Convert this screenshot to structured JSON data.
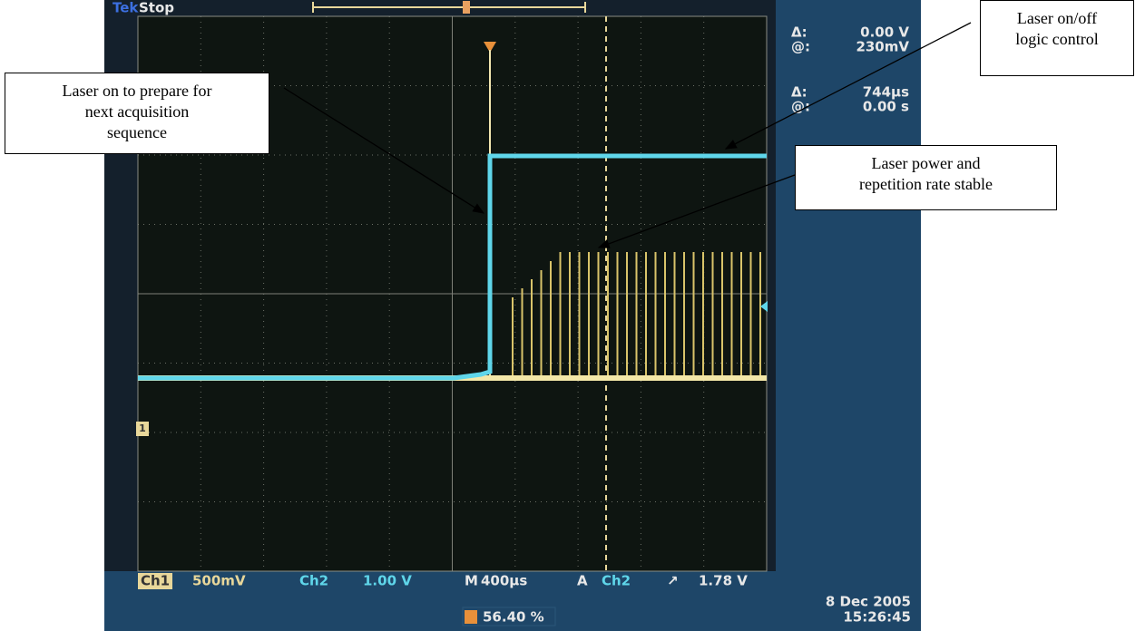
{
  "scope": {
    "brand": "Tek",
    "status": "Stop",
    "cursors": [
      {
        "delta_label": "Δ:",
        "delta": "0.00 V",
        "at_label": "@:",
        "at": "230mV"
      },
      {
        "delta_label": "Δ:",
        "delta": "744µs",
        "at_label": "@:",
        "at": "0.00 s"
      }
    ],
    "ch1_marker": "1",
    "status_bar": {
      "ch1": "Ch1",
      "ch1_scale": "500mV",
      "ch2": "Ch2",
      "ch2_scale": "1.00 V",
      "timebase_label": "M",
      "timebase": "400µs",
      "trigger_label": "A",
      "trigger_source": "Ch2",
      "trigger_level": "1.78 V"
    },
    "trigger_position": "56.40 %",
    "date": "8 Dec 2005",
    "time": "15:26:45"
  },
  "annotations": [
    {
      "lines": [
        "Laser on to prepare for",
        "next acquisition",
        "sequence"
      ]
    },
    {
      "lines": [
        "Laser on/off",
        "logic control"
      ]
    },
    {
      "lines": [
        "Laser power and",
        "repetition rate stable"
      ]
    }
  ]
}
